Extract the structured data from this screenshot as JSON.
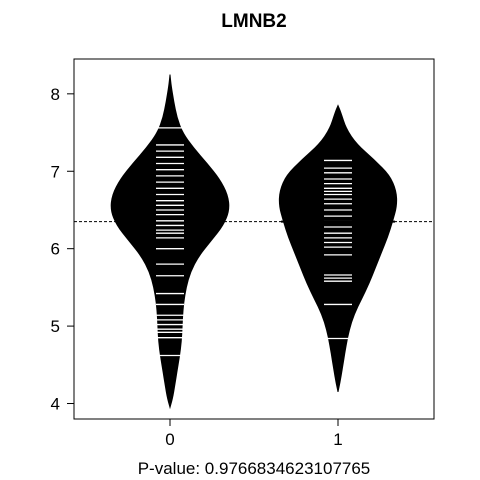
{
  "chart_data": {
    "type": "beanplot",
    "title": "LMNB2",
    "xlabel": "P-value: 0.976683462310776​5",
    "ylabel": "",
    "categories": [
      "0",
      "1"
    ],
    "y_ticks": [
      "4",
      "5",
      "6",
      "7",
      "8"
    ],
    "ylim": [
      3.8,
      8.45
    ],
    "overall_mean": 6.35,
    "grid": false,
    "legend": "none",
    "colors": {
      "bean": "#000000",
      "rug": "#ffffff",
      "background": "#ffffff"
    },
    "series": [
      {
        "category": "0",
        "group_mean": 6.53,
        "range": [
          3.95,
          8.25
        ],
        "density_points": [
          [
            3.95,
            0.0
          ],
          [
            4.1,
            0.05
          ],
          [
            4.3,
            0.09
          ],
          [
            4.5,
            0.13
          ],
          [
            4.7,
            0.17
          ],
          [
            4.9,
            0.19
          ],
          [
            5.1,
            0.2
          ],
          [
            5.3,
            0.22
          ],
          [
            5.5,
            0.26
          ],
          [
            5.7,
            0.33
          ],
          [
            5.9,
            0.46
          ],
          [
            6.1,
            0.66
          ],
          [
            6.3,
            0.86
          ],
          [
            6.5,
            0.96
          ],
          [
            6.7,
            0.93
          ],
          [
            6.9,
            0.8
          ],
          [
            7.1,
            0.6
          ],
          [
            7.3,
            0.38
          ],
          [
            7.5,
            0.2
          ],
          [
            7.7,
            0.11
          ],
          [
            7.9,
            0.06
          ],
          [
            8.1,
            0.02
          ],
          [
            8.25,
            0.0
          ]
        ],
        "rug": [
          4.62,
          4.85,
          4.92,
          4.96,
          5.02,
          5.08,
          5.14,
          5.28,
          5.42,
          5.65,
          5.8,
          6.0,
          6.14,
          6.2,
          6.24,
          6.3,
          6.36,
          6.44,
          6.5,
          6.56,
          6.62,
          6.7,
          6.78,
          6.86,
          6.94,
          7.02,
          7.1,
          7.18,
          7.26,
          7.34,
          7.56
        ]
      },
      {
        "category": "1",
        "group_mean": 6.35,
        "range": [
          4.15,
          7.85
        ],
        "density_points": [
          [
            4.15,
            0.0
          ],
          [
            4.35,
            0.05
          ],
          [
            4.55,
            0.09
          ],
          [
            4.75,
            0.13
          ],
          [
            4.95,
            0.18
          ],
          [
            5.15,
            0.26
          ],
          [
            5.35,
            0.38
          ],
          [
            5.55,
            0.5
          ],
          [
            5.75,
            0.6
          ],
          [
            5.95,
            0.7
          ],
          [
            6.15,
            0.8
          ],
          [
            6.35,
            0.88
          ],
          [
            6.55,
            0.95
          ],
          [
            6.75,
            0.94
          ],
          [
            6.95,
            0.83
          ],
          [
            7.15,
            0.58
          ],
          [
            7.35,
            0.3
          ],
          [
            7.55,
            0.13
          ],
          [
            7.75,
            0.05
          ],
          [
            7.85,
            0.0
          ]
        ],
        "rug": [
          4.84,
          5.28,
          5.58,
          5.62,
          5.66,
          5.92,
          6.02,
          6.08,
          6.14,
          6.2,
          6.28,
          6.35,
          6.42,
          6.5,
          6.58,
          6.64,
          6.7,
          6.74,
          6.78,
          6.84,
          6.9,
          6.98,
          7.04,
          7.14
        ]
      }
    ]
  }
}
